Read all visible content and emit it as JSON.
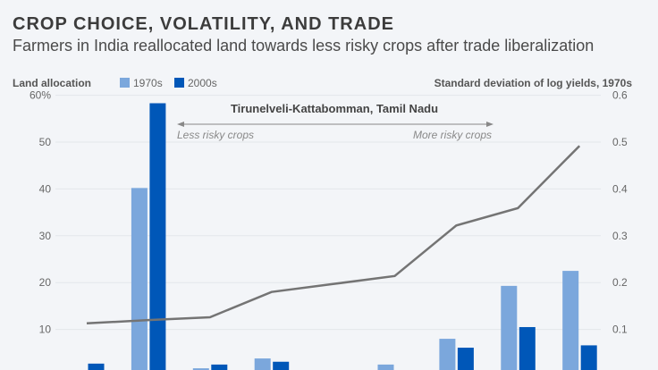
{
  "title": "CROP CHOICE, VOLATILITY, AND TRADE",
  "subtitle": "Farmers in India reallocated land towards less risky crops after trade liberalization",
  "chart_data": {
    "type": "bar",
    "left_axis_label": "Land allocation",
    "right_axis_label": "Standard deviation of log yields, 1970s",
    "left_ticks": [
      "10",
      "20",
      "30",
      "40",
      "50",
      "60%"
    ],
    "left_tick_values": [
      10,
      20,
      30,
      40,
      50,
      60
    ],
    "right_ticks": [
      "0.1",
      "0.2",
      "0.3",
      "0.4",
      "0.5",
      "0.6"
    ],
    "right_tick_values": [
      0.1,
      0.2,
      0.3,
      0.4,
      0.5,
      0.6
    ],
    "ylim_left": [
      0,
      60
    ],
    "ylim_right": [
      0,
      0.6
    ],
    "grid": true,
    "legend_placement": "top-left",
    "categories_count": 9,
    "series": [
      {
        "name": "1970s",
        "type": "bar",
        "axis": "left",
        "color": "#7ba7dc",
        "values": [
          0,
          40.2,
          1.7,
          3.8,
          0,
          2.5,
          8.0,
          19.3,
          22.5
        ]
      },
      {
        "name": "2000s",
        "type": "bar",
        "axis": "left",
        "color": "#0057b8",
        "values": [
          2.7,
          58.3,
          2.5,
          3.1,
          0,
          0,
          6.1,
          10.5,
          6.6
        ]
      },
      {
        "type": "line",
        "axis": "right",
        "color": "#747474",
        "values": [
          0.113,
          0.12,
          0.126,
          0.18,
          0.197,
          0.214,
          0.322,
          0.359,
          0.492
        ]
      }
    ],
    "annotations": {
      "region": "Tirunelveli-Kattabomman, Tamil Nadu",
      "left_arrow": "Less risky crops",
      "right_arrow": "More risky crops"
    }
  }
}
